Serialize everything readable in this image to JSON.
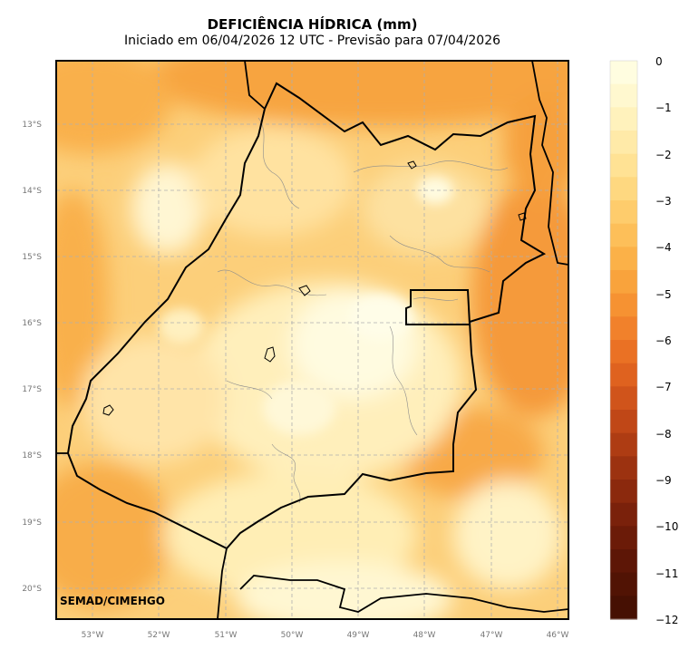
{
  "header": {
    "title": "DEFICIÊNCIA HÍDRICA (mm)",
    "subtitle": "Iniciado em 06/04/2026 12 UTC - Previsão para 07/04/2026"
  },
  "map": {
    "credit": "SEMAD/CIMEHGO",
    "lat_labels": [
      "13°S",
      "14°S",
      "15°S",
      "16°S",
      "17°S",
      "18°S",
      "19°S",
      "20°S"
    ],
    "lon_labels": [
      "53°W",
      "52°W",
      "51°W",
      "50°W",
      "49°W",
      "48°W",
      "47°W",
      "46°W"
    ],
    "lon_range": [
      -53.55,
      -45.85
    ],
    "lat_range": [
      -20.45,
      -12.1
    ]
  },
  "colorbar": {
    "labels": [
      "0",
      "−1",
      "−2",
      "−3",
      "−4",
      "−5",
      "−6",
      "−7",
      "−8",
      "−9",
      "−10",
      "−11",
      "−12"
    ],
    "range": [
      0,
      -12
    ],
    "colors": [
      "#fffde0",
      "#fff8cf",
      "#fff2bc",
      "#ffeaa8",
      "#ffe294",
      "#fed880",
      "#fecc6c",
      "#fdbf59",
      "#fbb148",
      "#f9a33c",
      "#f69232",
      "#f1812b",
      "#ea7124",
      "#df621f",
      "#d0541b",
      "#c04717",
      "#ae3c13",
      "#9c3210",
      "#8b290d",
      "#7a210b",
      "#6b1b08",
      "#5d1606",
      "#511304",
      "#461003"
    ]
  },
  "colors": {
    "pale": "#fffbe0",
    "light": "#ffe9ad",
    "medium": "#fccf7a",
    "orange": "#f9b04c",
    "deep": "#f39a3a"
  }
}
